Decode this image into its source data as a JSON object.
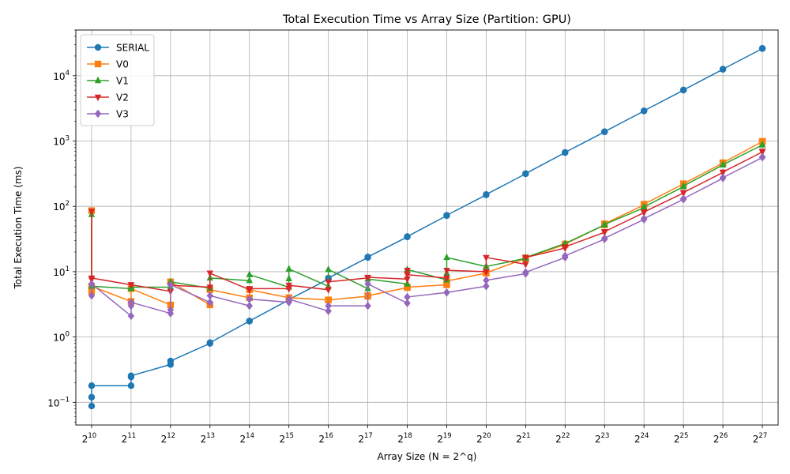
{
  "chart_data": {
    "type": "line",
    "title": "Total Execution Time vs Array Size (Partition: GPU)",
    "xlabel": "Array Size (N = 2^q)",
    "ylabel": "Total Execution Time (ms)",
    "yscale": "log",
    "ylim": [
      0.045,
      50000
    ],
    "xlim": [
      9.6,
      27.4
    ],
    "grid": true,
    "legend_position": "top-left",
    "x_ticks": [
      {
        "base": "2",
        "exp": "10"
      },
      {
        "base": "2",
        "exp": "11"
      },
      {
        "base": "2",
        "exp": "12"
      },
      {
        "base": "2",
        "exp": "13"
      },
      {
        "base": "2",
        "exp": "14"
      },
      {
        "base": "2",
        "exp": "15"
      },
      {
        "base": "2",
        "exp": "16"
      },
      {
        "base": "2",
        "exp": "17"
      },
      {
        "base": "2",
        "exp": "18"
      },
      {
        "base": "2",
        "exp": "19"
      },
      {
        "base": "2",
        "exp": "20"
      },
      {
        "base": "2",
        "exp": "21"
      },
      {
        "base": "2",
        "exp": "22"
      },
      {
        "base": "2",
        "exp": "23"
      },
      {
        "base": "2",
        "exp": "24"
      },
      {
        "base": "2",
        "exp": "25"
      },
      {
        "base": "2",
        "exp": "26"
      },
      {
        "base": "2",
        "exp": "27"
      }
    ],
    "y_ticks": [
      {
        "base": "10",
        "exp": "−1",
        "value": 0.1
      },
      {
        "base": "10",
        "exp": "0",
        "value": 1
      },
      {
        "base": "10",
        "exp": "1",
        "value": 10
      },
      {
        "base": "10",
        "exp": "2",
        "value": 100
      },
      {
        "base": "10",
        "exp": "3",
        "value": 1000
      },
      {
        "base": "10",
        "exp": "4",
        "value": 10000
      }
    ],
    "series": [
      {
        "name": "SERIAL",
        "color": "#1f77b4",
        "marker": "circle",
        "points": [
          [
            10,
            0.088
          ],
          [
            10,
            0.12
          ],
          [
            10,
            0.18
          ],
          [
            11,
            0.18
          ],
          [
            11,
            0.245
          ],
          [
            11,
            0.255
          ],
          [
            12,
            0.38
          ],
          [
            12,
            0.43
          ],
          [
            13,
            0.8
          ],
          [
            13,
            0.82
          ],
          [
            14,
            1.75
          ],
          [
            14,
            1.76
          ],
          [
            15,
            3.7
          ],
          [
            15,
            3.75
          ],
          [
            16,
            7.7
          ],
          [
            16,
            8.0
          ],
          [
            17,
            16.5
          ],
          [
            17,
            16.8
          ],
          [
            18,
            34
          ],
          [
            18,
            34.5
          ],
          [
            19,
            72
          ],
          [
            19,
            73
          ],
          [
            20,
            150
          ],
          [
            20,
            152
          ],
          [
            21,
            315
          ],
          [
            21,
            318
          ],
          [
            22,
            665
          ],
          [
            22,
            670
          ],
          [
            23,
            1380
          ],
          [
            23,
            1390
          ],
          [
            24,
            2880
          ],
          [
            24,
            2900
          ],
          [
            25,
            6000
          ],
          [
            25,
            6050
          ],
          [
            26,
            12500
          ],
          [
            26,
            12600
          ],
          [
            27,
            26000
          ],
          [
            27,
            26200
          ]
        ]
      },
      {
        "name": "V0",
        "color": "#ff7f0e",
        "marker": "square",
        "points": [
          [
            10,
            5.0
          ],
          [
            10,
            86
          ],
          [
            10,
            6.0
          ],
          [
            11,
            3.5
          ],
          [
            11,
            5.5
          ],
          [
            12,
            3.1
          ],
          [
            12,
            7.0
          ],
          [
            13,
            3.1
          ],
          [
            13,
            5.3
          ],
          [
            14,
            4.0
          ],
          [
            14,
            5.3
          ],
          [
            15,
            4.0
          ],
          [
            15,
            4.0
          ],
          [
            16,
            3.7
          ],
          [
            16,
            3.7
          ],
          [
            17,
            4.2
          ],
          [
            17,
            4.3
          ],
          [
            18,
            5.7
          ],
          [
            18,
            5.8
          ],
          [
            19,
            6.3
          ],
          [
            19,
            7.2
          ],
          [
            20,
            9.5
          ],
          [
            20,
            9.6
          ],
          [
            21,
            16.0
          ],
          [
            21,
            16.3
          ],
          [
            22,
            26.0
          ],
          [
            22,
            26.5
          ],
          [
            23,
            52
          ],
          [
            23,
            54
          ],
          [
            24,
            105
          ],
          [
            24,
            108
          ],
          [
            25,
            220
          ],
          [
            25,
            222
          ],
          [
            26,
            460
          ],
          [
            26,
            465
          ],
          [
            27,
            980
          ],
          [
            27,
            990
          ]
        ]
      },
      {
        "name": "V1",
        "color": "#2ca02c",
        "marker": "triangle-up",
        "points": [
          [
            10,
            6.0
          ],
          [
            10,
            75
          ],
          [
            10,
            6.0
          ],
          [
            11,
            5.5
          ],
          [
            11,
            5.8
          ],
          [
            12,
            5.8
          ],
          [
            12,
            7.0
          ],
          [
            13,
            5.6
          ],
          [
            13,
            8.0
          ],
          [
            14,
            7.3
          ],
          [
            14,
            9.0
          ],
          [
            15,
            5.8
          ],
          [
            15,
            7.8
          ],
          [
            15,
            11.0
          ],
          [
            16,
            6.0
          ],
          [
            16,
            10.8
          ],
          [
            17,
            5.5
          ],
          [
            17,
            7.7
          ],
          [
            18,
            6.5
          ],
          [
            18,
            10.8
          ],
          [
            19,
            7.5
          ],
          [
            19,
            9.5
          ],
          [
            19,
            16.5
          ],
          [
            20,
            12.0
          ],
          [
            20,
            12.0
          ],
          [
            21,
            16.0
          ],
          [
            21,
            16.5
          ],
          [
            22,
            27.0
          ],
          [
            22,
            27.0
          ],
          [
            23,
            52
          ],
          [
            23,
            53
          ],
          [
            24,
            95
          ],
          [
            24,
            98
          ],
          [
            25,
            200
          ],
          [
            25,
            205
          ],
          [
            26,
            430
          ],
          [
            26,
            435
          ],
          [
            27,
            870
          ],
          [
            27,
            880
          ]
        ]
      },
      {
        "name": "V2",
        "color": "#d62728",
        "marker": "triangle-down",
        "points": [
          [
            10,
            7.6
          ],
          [
            10,
            84
          ],
          [
            10,
            8.0
          ],
          [
            11,
            6.3
          ],
          [
            11,
            6.3
          ],
          [
            12,
            5.0
          ],
          [
            12,
            6.2
          ],
          [
            13,
            5.8
          ],
          [
            13,
            9.5
          ],
          [
            14,
            5.3
          ],
          [
            14,
            5.5
          ],
          [
            15,
            5.5
          ],
          [
            15,
            6.2
          ],
          [
            16,
            5.3
          ],
          [
            16,
            7.0
          ],
          [
            17,
            8.0
          ],
          [
            17,
            8.2
          ],
          [
            18,
            7.7
          ],
          [
            18,
            10.5
          ],
          [
            18,
            9.0
          ],
          [
            19,
            8.0
          ],
          [
            19,
            10.5
          ],
          [
            20,
            10.0
          ],
          [
            20,
            16.5
          ],
          [
            21,
            13.0
          ],
          [
            21,
            16.5
          ],
          [
            22,
            23.0
          ],
          [
            22,
            24.0
          ],
          [
            23,
            40
          ],
          [
            23,
            41
          ],
          [
            24,
            80
          ],
          [
            24,
            82
          ],
          [
            25,
            160
          ],
          [
            25,
            163
          ],
          [
            26,
            330
          ],
          [
            26,
            335
          ],
          [
            27,
            680
          ],
          [
            27,
            700
          ]
        ]
      },
      {
        "name": "V3",
        "color": "#9467bd",
        "marker": "diamond",
        "points": [
          [
            10,
            4.3
          ],
          [
            10,
            6.5
          ],
          [
            11,
            2.1
          ],
          [
            11,
            3.0
          ],
          [
            11,
            3.4
          ],
          [
            12,
            2.3
          ],
          [
            12,
            2.6
          ],
          [
            12,
            6.3
          ],
          [
            13,
            3.4
          ],
          [
            13,
            4.3
          ],
          [
            14,
            3.0
          ],
          [
            14,
            3.8
          ],
          [
            15,
            3.4
          ],
          [
            15,
            3.8
          ],
          [
            16,
            2.5
          ],
          [
            16,
            3.0
          ],
          [
            17,
            3.0
          ],
          [
            17,
            6.5
          ],
          [
            18,
            3.3
          ],
          [
            18,
            4.1
          ],
          [
            19,
            4.8
          ],
          [
            19,
            4.8
          ],
          [
            20,
            6.0
          ],
          [
            20,
            7.4
          ],
          [
            21,
            9.3
          ],
          [
            21,
            9.8
          ],
          [
            22,
            16.5
          ],
          [
            22,
            17.5
          ],
          [
            23,
            31.5
          ],
          [
            23,
            32.5
          ],
          [
            24,
            63
          ],
          [
            24,
            65
          ],
          [
            25,
            128
          ],
          [
            25,
            131
          ],
          [
            26,
            270
          ],
          [
            26,
            275
          ],
          [
            27,
            560
          ],
          [
            27,
            570
          ]
        ]
      }
    ]
  }
}
